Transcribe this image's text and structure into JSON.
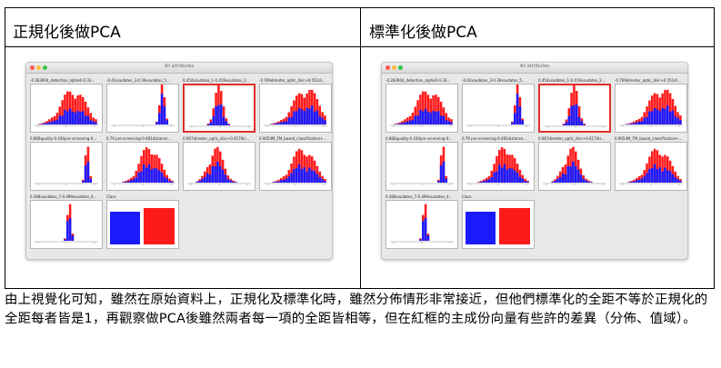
{
  "headers": {
    "left": "正規化後做PCA",
    "right": "標準化後做PCA"
  },
  "window_title": "All attributes",
  "panel_labels": [
    "-0.283904_detection_alpha0-0.33...",
    "-0.42xsudates_3-0.39xsudates_5...",
    "0.454xsudates_1-0.419xsudates_2...",
    "-0.769dimeter_optic_disc+0.551di...",
    "0.866quality-0.434pre-screening-0...",
    "0.79 pre-screening-0.481distance...",
    "0.667dimeter_optic_disc+0.617dis...",
    "0.9054M_FM_based_classification+...",
    "0.368xsudates_7-0.499xsudates_4...",
    "Class"
  ],
  "caption": "由上視覺化可知，雖然在原始資料上，正規化及標準化時，雖然分佈情形非常接近，但他們標準化的全距不等於正規化的全距每者皆是1，再觀察做PCA後雖然兩者每一項的全距皆相等，但在紅框的主成份向量有些許的差異（分佈、值域）。",
  "colors": {
    "class_a": "#1a1aff",
    "class_b": "#ff1a1a",
    "highlight_border": "#e0302a"
  }
}
